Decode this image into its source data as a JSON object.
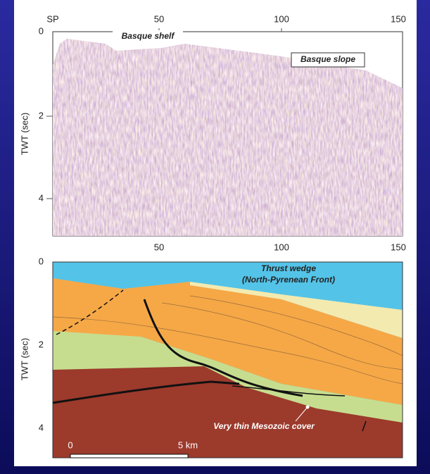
{
  "top_panel": {
    "shot_point_label": "SP",
    "x_ticks": [
      50,
      100,
      150
    ],
    "y_ticks": [
      0,
      2,
      4
    ],
    "y_label": "TWT (sec)",
    "labels": [
      "Basque shelf",
      "Basque slope"
    ]
  },
  "bottom_panel": {
    "x_ticks": [
      50,
      100,
      150
    ],
    "y_ticks": [
      0,
      2,
      4
    ],
    "y_label": "TWT (sec)",
    "labels": [
      "Thrust wedge",
      "(North-Pyrenean Front)",
      "Very thin Mesozoic cover"
    ],
    "scale_bar": [
      "0",
      "5 km"
    ]
  }
}
